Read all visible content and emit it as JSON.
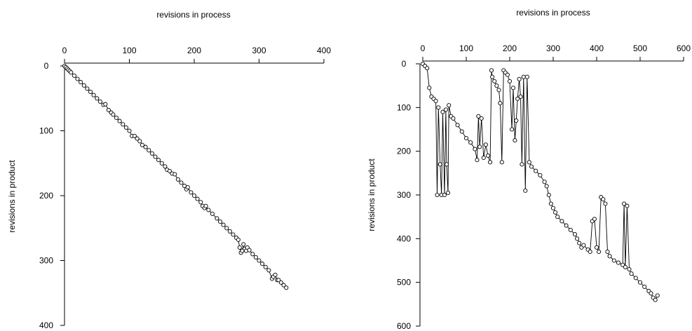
{
  "chart_data": [
    {
      "type": "scatter",
      "connected": true,
      "title": "revisions in process",
      "xlabel": "revisions in process",
      "ylabel": "revisions in product",
      "x_axis_position": "top",
      "y_axis_inverted": true,
      "xlim": [
        0,
        400
      ],
      "ylim": [
        0,
        400
      ],
      "x_ticks": [
        0,
        100,
        200,
        300,
        400
      ],
      "y_ticks": [
        0,
        100,
        200,
        300,
        400
      ],
      "grid": false,
      "series": [
        {
          "x": [
            0,
            2,
            4,
            6,
            8,
            10,
            15,
            20,
            25,
            30,
            35,
            40,
            45,
            50,
            55,
            60,
            63,
            68,
            72,
            75,
            80,
            85,
            90,
            95,
            100,
            104,
            108,
            112,
            116,
            120,
            125,
            130,
            135,
            140,
            145,
            150,
            155,
            158,
            162,
            166,
            170,
            175,
            180,
            185,
            188,
            190,
            195,
            200,
            205,
            210,
            213,
            216,
            218,
            222,
            228,
            235,
            240,
            245,
            250,
            255,
            260,
            265,
            268,
            270,
            272,
            274,
            276,
            278,
            280,
            282,
            285,
            290,
            295,
            300,
            305,
            310,
            315,
            320,
            322,
            325,
            328,
            330,
            334,
            338,
            342
          ],
          "y": [
            0,
            2,
            4,
            6,
            8,
            10,
            15,
            20,
            25,
            30,
            35,
            40,
            45,
            50,
            55,
            60,
            59,
            68,
            72,
            75,
            80,
            85,
            90,
            95,
            100,
            108,
            108,
            112,
            116,
            122,
            125,
            130,
            135,
            140,
            145,
            150,
            155,
            160,
            162,
            166,
            167,
            175,
            180,
            185,
            190,
            187,
            195,
            200,
            205,
            210,
            216,
            219,
            216,
            222,
            228,
            235,
            240,
            245,
            250,
            255,
            260,
            265,
            268,
            280,
            288,
            285,
            275,
            282,
            285,
            280,
            284,
            290,
            295,
            300,
            305,
            310,
            315,
            328,
            325,
            322,
            330,
            330,
            334,
            338,
            342
          ]
        }
      ]
    },
    {
      "type": "scatter",
      "connected": true,
      "title": "revisions in process",
      "xlabel": "revisions in process",
      "ylabel": "revisions in product",
      "x_axis_position": "top",
      "y_axis_inverted": true,
      "xlim": [
        0,
        600
      ],
      "ylim": [
        0,
        600
      ],
      "x_ticks": [
        0,
        100,
        200,
        300,
        400,
        500,
        600
      ],
      "y_ticks": [
        0,
        100,
        200,
        300,
        400,
        500,
        600
      ],
      "grid": false,
      "series": [
        {
          "x": [
            0,
            5,
            10,
            15,
            20,
            25,
            30,
            33,
            36,
            40,
            43,
            46,
            50,
            53,
            55,
            58,
            60,
            65,
            70,
            80,
            90,
            100,
            110,
            120,
            125,
            128,
            131,
            135,
            140,
            145,
            150,
            155,
            158,
            160,
            165,
            170,
            175,
            178,
            182,
            186,
            190,
            195,
            200,
            205,
            208,
            212,
            215,
            218,
            222,
            225,
            228,
            232,
            236,
            240,
            245,
            250,
            260,
            270,
            280,
            285,
            290,
            295,
            300,
            305,
            310,
            320,
            330,
            340,
            350,
            355,
            360,
            365,
            370,
            380,
            385,
            390,
            395,
            400,
            405,
            410,
            415,
            420,
            425,
            430,
            440,
            450,
            460,
            463,
            466,
            470,
            475,
            480,
            490,
            500,
            510,
            520,
            525,
            530,
            535,
            540
          ],
          "y": [
            0,
            5,
            10,
            55,
            75,
            80,
            85,
            300,
            100,
            230,
            300,
            110,
            300,
            105,
            230,
            295,
            95,
            120,
            125,
            140,
            155,
            170,
            180,
            195,
            220,
            120,
            190,
            125,
            215,
            185,
            210,
            225,
            15,
            30,
            40,
            50,
            60,
            90,
            225,
            15,
            20,
            25,
            40,
            150,
            55,
            175,
            130,
            80,
            35,
            75,
            230,
            30,
            290,
            30,
            225,
            235,
            245,
            255,
            270,
            280,
            300,
            320,
            330,
            340,
            350,
            360,
            370,
            380,
            390,
            400,
            410,
            420,
            415,
            425,
            430,
            360,
            355,
            420,
            430,
            305,
            310,
            320,
            430,
            440,
            450,
            455,
            460,
            320,
            465,
            325,
            470,
            480,
            490,
            500,
            510,
            520,
            525,
            535,
            540,
            530
          ]
        }
      ]
    }
  ]
}
